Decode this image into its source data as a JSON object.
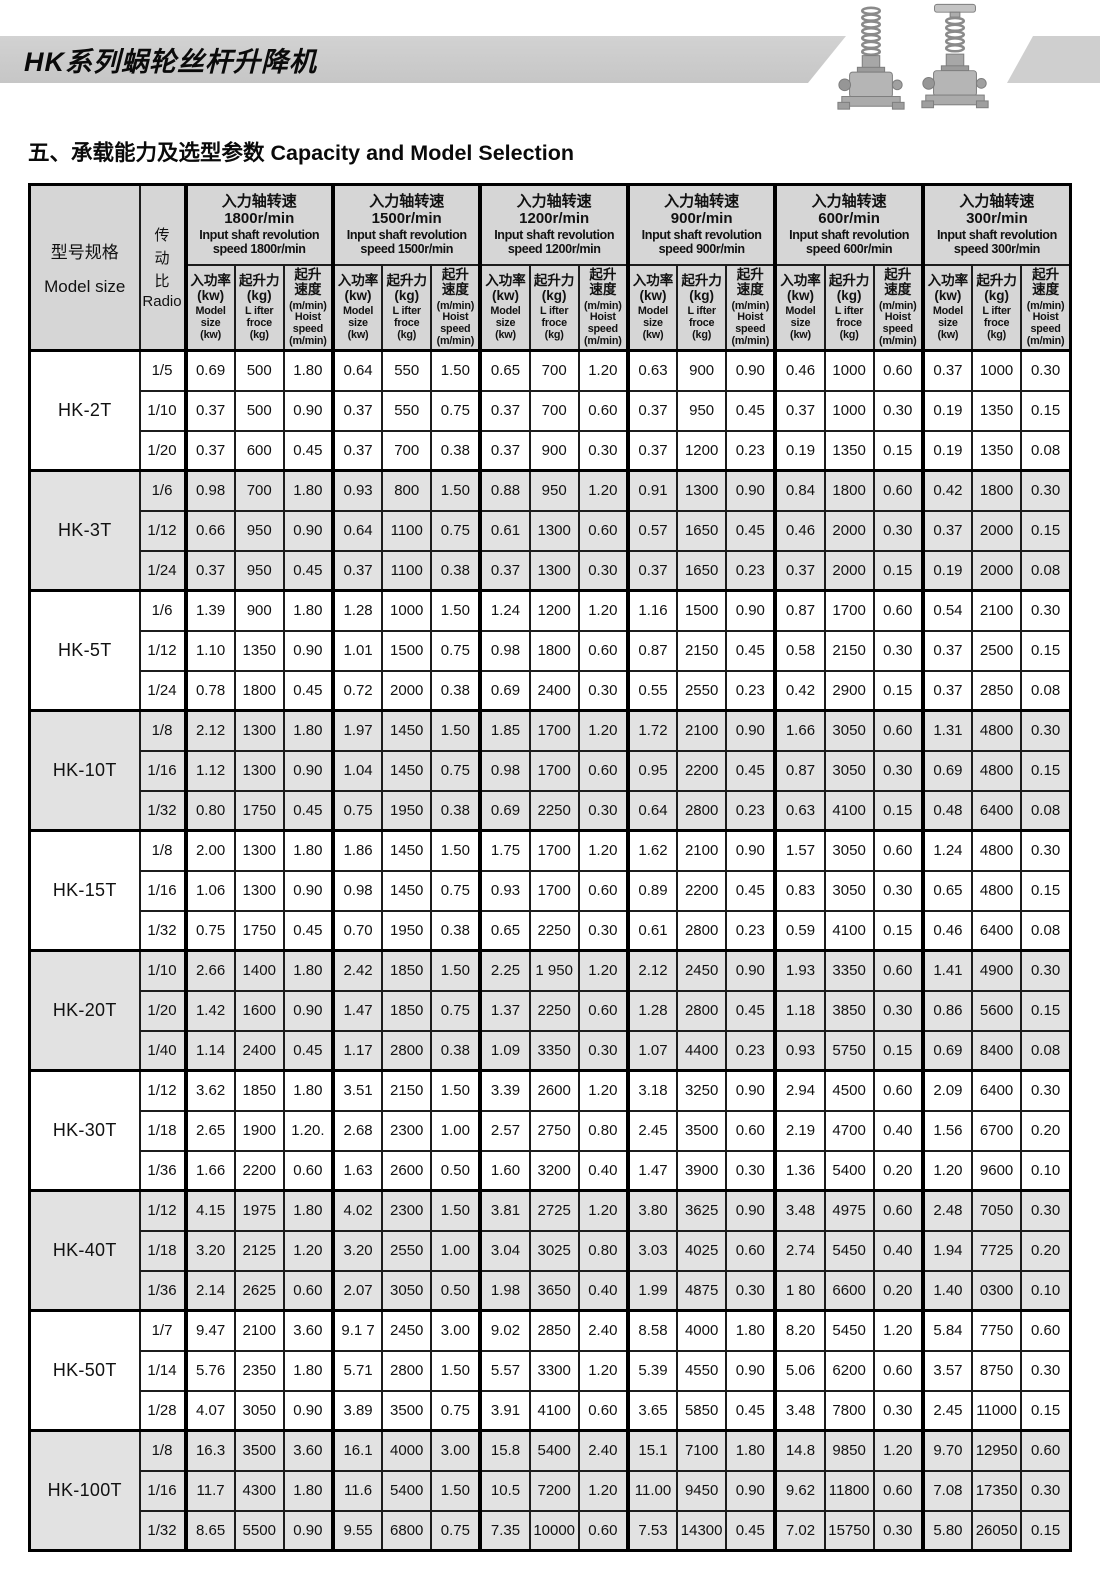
{
  "header": {
    "title": "HK系列蜗轮丝杆升降机",
    "product_images": [
      "screw-jack-plain-screw",
      "screw-jack-with-flange-plate"
    ]
  },
  "section": {
    "title_zh": "五、承载能力及选型参数",
    "title_en": "Capacity and Model Selection"
  },
  "table": {
    "model_col_header": {
      "zh": "型号规格",
      "en": "Model size"
    },
    "ratio_col_header": {
      "zh_chars": [
        "传",
        "动",
        "比"
      ],
      "en": "Radio"
    },
    "speed_groups": [
      {
        "lines": [
          "入力轴转速",
          "1800r/min",
          "Input shaft revolution",
          "speed 1800r/min"
        ]
      },
      {
        "lines": [
          "入力轴转速",
          "1500r/min",
          "Input shaft revolution",
          "speed 1500r/min"
        ]
      },
      {
        "lines": [
          "入力轴转速",
          "1200r/min",
          "Input shaft revolution",
          "speed 1200r/min"
        ]
      },
      {
        "lines": [
          "入力轴转速",
          "900r/min",
          "Input shaft revolution",
          "speed 900r/min"
        ]
      },
      {
        "lines": [
          "入力轴转速",
          "600r/min",
          "Input shaft revolution",
          "speed 600r/min"
        ]
      },
      {
        "lines": [
          "入力轴转速",
          "300r/min",
          "Input shaft revolution",
          "speed 300r/min"
        ]
      }
    ],
    "sub_columns": [
      {
        "zh_lines": [
          "入功率",
          "(kw)"
        ],
        "en_lines": [
          "Model",
          "size",
          "(kw)"
        ]
      },
      {
        "zh_lines": [
          "起升力",
          "(kg)"
        ],
        "en_lines": [
          "L ifter",
          "froce",
          "(kg)"
        ]
      },
      {
        "zh_lines": [
          "起升",
          "速度"
        ],
        "en_lines": [
          "(m/min)",
          "Hoist",
          "speed",
          "(m/min)"
        ]
      }
    ],
    "groups": [
      {
        "model": "HK-2T",
        "rows": [
          {
            "ratio": "1/5",
            "v": [
              "0.69",
              "500",
              "1.80",
              "0.64",
              "550",
              "1.50",
              "0.65",
              "700",
              "1.20",
              "0.63",
              "900",
              "0.90",
              "0.46",
              "1000",
              "0.60",
              "0.37",
              "1000",
              "0.30"
            ]
          },
          {
            "ratio": "1/10",
            "v": [
              "0.37",
              "500",
              "0.90",
              "0.37",
              "550",
              "0.75",
              "0.37",
              "700",
              "0.60",
              "0.37",
              "950",
              "0.45",
              "0.37",
              "1000",
              "0.30",
              "0.19",
              "1350",
              "0.15"
            ]
          },
          {
            "ratio": "1/20",
            "v": [
              "0.37",
              "600",
              "0.45",
              "0.37",
              "700",
              "0.38",
              "0.37",
              "900",
              "0.30",
              "0.37",
              "1200",
              "0.23",
              "0.19",
              "1350",
              "0.15",
              "0.19",
              "1350",
              "0.08"
            ]
          }
        ]
      },
      {
        "model": "HK-3T",
        "rows": [
          {
            "ratio": "1/6",
            "v": [
              "0.98",
              "700",
              "1.80",
              "0.93",
              "800",
              "1.50",
              "0.88",
              "950",
              "1.20",
              "0.91",
              "1300",
              "0.90",
              "0.84",
              "1800",
              "0.60",
              "0.42",
              "1800",
              "0.30"
            ]
          },
          {
            "ratio": "1/12",
            "v": [
              "0.66",
              "950",
              "0.90",
              "0.64",
              "1100",
              "0.75",
              "0.61",
              "1300",
              "0.60",
              "0.57",
              "1650",
              "0.45",
              "0.46",
              "2000",
              "0.30",
              "0.37",
              "2000",
              "0.15"
            ]
          },
          {
            "ratio": "1/24",
            "v": [
              "0.37",
              "950",
              "0.45",
              "0.37",
              "1100",
              "0.38",
              "0.37",
              "1300",
              "0.30",
              "0.37",
              "1650",
              "0.23",
              "0.37",
              "2000",
              "0.15",
              "0.19",
              "2000",
              "0.08"
            ]
          }
        ]
      },
      {
        "model": "HK-5T",
        "rows": [
          {
            "ratio": "1/6",
            "v": [
              "1.39",
              "900",
              "1.80",
              "1.28",
              "1000",
              "1.50",
              "1.24",
              "1200",
              "1.20",
              "1.16",
              "1500",
              "0.90",
              "0.87",
              "1700",
              "0.60",
              "0.54",
              "2100",
              "0.30"
            ]
          },
          {
            "ratio": "1/12",
            "v": [
              "1.10",
              "1350",
              "0.90",
              "1.01",
              "1500",
              "0.75",
              "0.98",
              "1800",
              "0.60",
              "0.87",
              "2150",
              "0.45",
              "0.58",
              "2150",
              "0.30",
              "0.37",
              "2500",
              "0.15"
            ]
          },
          {
            "ratio": "1/24",
            "v": [
              "0.78",
              "1800",
              "0.45",
              "0.72",
              "2000",
              "0.38",
              "0.69",
              "2400",
              "0.30",
              "0.55",
              "2550",
              "0.23",
              "0.42",
              "2900",
              "0.15",
              "0.37",
              "2850",
              "0.08"
            ]
          }
        ]
      },
      {
        "model": "HK-10T",
        "rows": [
          {
            "ratio": "1/8",
            "v": [
              "2.12",
              "1300",
              "1.80",
              "1.97",
              "1450",
              "1.50",
              "1.85",
              "1700",
              "1.20",
              "1.72",
              "2100",
              "0.90",
              "1.66",
              "3050",
              "0.60",
              "1.31",
              "4800",
              "0.30"
            ]
          },
          {
            "ratio": "1/16",
            "v": [
              "1.12",
              "1300",
              "0.90",
              "1.04",
              "1450",
              "0.75",
              "0.98",
              "1700",
              "0.60",
              "0.95",
              "2200",
              "0.45",
              "0.87",
              "3050",
              "0.30",
              "0.69",
              "4800",
              "0.15"
            ]
          },
          {
            "ratio": "1/32",
            "v": [
              "0.80",
              "1750",
              "0.45",
              "0.75",
              "1950",
              "0.38",
              "0.69",
              "2250",
              "0.30",
              "0.64",
              "2800",
              "0.23",
              "0.63",
              "4100",
              "0.15",
              "0.48",
              "6400",
              "0.08"
            ]
          }
        ]
      },
      {
        "model": "HK-15T",
        "rows": [
          {
            "ratio": "1/8",
            "v": [
              "2.00",
              "1300",
              "1.80",
              "1.86",
              "1450",
              "1.50",
              "1.75",
              "1700",
              "1.20",
              "1.62",
              "2100",
              "0.90",
              "1.57",
              "3050",
              "0.60",
              "1.24",
              "4800",
              "0.30"
            ]
          },
          {
            "ratio": "1/16",
            "v": [
              "1.06",
              "1300",
              "0.90",
              "0.98",
              "1450",
              "0.75",
              "0.93",
              "1700",
              "0.60",
              "0.89",
              "2200",
              "0.45",
              "0.83",
              "3050",
              "0.30",
              "0.65",
              "4800",
              "0.15"
            ]
          },
          {
            "ratio": "1/32",
            "v": [
              "0.75",
              "1750",
              "0.45",
              "0.70",
              "1950",
              "0.38",
              "0.65",
              "2250",
              "0.30",
              "0.61",
              "2800",
              "0.23",
              "0.59",
              "4100",
              "0.15",
              "0.46",
              "6400",
              "0.08"
            ]
          }
        ]
      },
      {
        "model": "HK-20T",
        "rows": [
          {
            "ratio": "1/10",
            "v": [
              "2.66",
              "1400",
              "1.80",
              "2.42",
              "1850",
              "1.50",
              "2.25",
              "1 950",
              "1.20",
              "2.12",
              "2450",
              "0.90",
              "1.93",
              "3350",
              "0.60",
              "1.41",
              "4900",
              "0.30"
            ]
          },
          {
            "ratio": "1/20",
            "v": [
              "1.42",
              "1600",
              "0.90",
              "1.47",
              "1850",
              "0.75",
              "1.37",
              "2250",
              "0.60",
              "1.28",
              "2800",
              "0.45",
              "1.18",
              "3850",
              "0.30",
              "0.86",
              "5600",
              "0.15"
            ]
          },
          {
            "ratio": "1/40",
            "v": [
              "1.14",
              "2400",
              "0.45",
              "1.17",
              "2800",
              "0.38",
              "1.09",
              "3350",
              "0.30",
              "1.07",
              "4400",
              "0.23",
              "0.93",
              "5750",
              "0.15",
              "0.69",
              "8400",
              "0.08"
            ]
          }
        ]
      },
      {
        "model": "HK-30T",
        "rows": [
          {
            "ratio": "1/12",
            "v": [
              "3.62",
              "1850",
              "1.80",
              "3.51",
              "2150",
              "1.50",
              "3.39",
              "2600",
              "1.20",
              "3.18",
              "3250",
              "0.90",
              "2.94",
              "4500",
              "0.60",
              "2.09",
              "6400",
              "0.30"
            ]
          },
          {
            "ratio": "1/18",
            "v": [
              "2.65",
              "1900",
              "1.20.",
              "2.68",
              "2300",
              "1.00",
              "2.57",
              "2750",
              "0.80",
              "2.45",
              "3500",
              "0.60",
              "2.19",
              "4700",
              "0.40",
              "1.56",
              "6700",
              "0.20"
            ]
          },
          {
            "ratio": "1/36",
            "v": [
              "1.66",
              "2200",
              "0.60",
              "1.63",
              "2600",
              "0.50",
              "1.60",
              "3200",
              "0.40",
              "1.47",
              "3900",
              "0.30",
              "1.36",
              "5400",
              "0.20",
              "1.20",
              "9600",
              "0.10"
            ]
          }
        ]
      },
      {
        "model": "HK-40T",
        "rows": [
          {
            "ratio": "1/12",
            "v": [
              "4.15",
              "1975",
              "1.80",
              "4.02",
              "2300",
              "1.50",
              "3.81",
              "2725",
              "1.20",
              "3.80",
              "3625",
              "0.90",
              "3.48",
              "4975",
              "0.60",
              "2.48",
              "7050",
              "0.30"
            ]
          },
          {
            "ratio": "1/18",
            "v": [
              "3.20",
              "2125",
              "1.20",
              "3.20",
              "2550",
              "1.00",
              "3.04",
              "3025",
              "0.80",
              "3.03",
              "4025",
              "0.60",
              "2.74",
              "5450",
              "0.40",
              "1.94",
              "7725",
              "0.20"
            ]
          },
          {
            "ratio": "1/36",
            "v": [
              "2.14",
              "2625",
              "0.60",
              "2.07",
              "3050",
              "0.50",
              "1.98",
              "3650",
              "0.40",
              "1.99",
              "4875",
              "0.30",
              "1 80",
              "6600",
              "0.20",
              "1.40",
              "0300",
              "0.10"
            ]
          }
        ]
      },
      {
        "model": "HK-50T",
        "rows": [
          {
            "ratio": "1/7",
            "v": [
              "9.47",
              "2100",
              "3.60",
              "9.1 7",
              "2450",
              "3.00",
              "9.02",
              "2850",
              "2.40",
              "8.58",
              "4000",
              "1.80",
              "8.20",
              "5450",
              "1.20",
              "5.84",
              "7750",
              "0.60"
            ]
          },
          {
            "ratio": "1/14",
            "v": [
              "5.76",
              "2350",
              "1.80",
              "5.71",
              "2800",
              "1.50",
              "5.57",
              "3300",
              "1.20",
              "5.39",
              "4550",
              "0.90",
              "5.06",
              "6200",
              "0.60",
              "3.57",
              "8750",
              "0.30"
            ]
          },
          {
            "ratio": "1/28",
            "v": [
              "4.07",
              "3050",
              "0.90",
              "3.89",
              "3500",
              "0.75",
              "3.91",
              "4100",
              "0.60",
              "3.65",
              "5850",
              "0.45",
              "3.48",
              "7800",
              "0.30",
              "2.45",
              "11000",
              "0.15"
            ]
          }
        ]
      },
      {
        "model": "HK-100T",
        "rows": [
          {
            "ratio": "1/8",
            "v": [
              "16.3",
              "3500",
              "3.60",
              "16.1",
              "4000",
              "3.00",
              "15.8",
              "5400",
              "2.40",
              "15.1",
              "7100",
              "1.80",
              "14.8",
              "9850",
              "1.20",
              "9.70",
              "12950",
              "0.60"
            ]
          },
          {
            "ratio": "1/16",
            "v": [
              "11.7",
              "4300",
              "1.80",
              "11.6",
              "5400",
              "1.50",
              "10.5",
              "7200",
              "1.20",
              "11.00",
              "9450",
              "0.90",
              "9.62",
              "11800",
              "0.60",
              "7.08",
              "17350",
              "0.30"
            ]
          },
          {
            "ratio": "1/32",
            "v": [
              "8.65",
              "5500",
              "0.90",
              "9.55",
              "6800",
              "0.75",
              "7.35",
              "10000",
              "0.60",
              "7.53",
              "14300",
              "0.45",
              "7.02",
              "15750",
              "0.30",
              "5.80",
              "26050",
              "0.15"
            ]
          }
        ]
      }
    ]
  }
}
